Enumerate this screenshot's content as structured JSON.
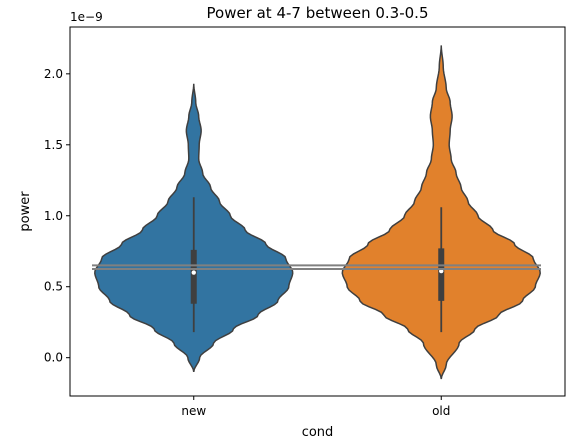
{
  "chart_data": {
    "type": "violin",
    "title": "Power at 4-7 between 0.3-0.5",
    "xlabel": "cond",
    "ylabel": "power",
    "y_offset_label": "1e−9",
    "y_scale": 1e-09,
    "ylim": [
      -0.27,
      2.33
    ],
    "yticks": [
      0.0,
      0.5,
      1.0,
      1.5,
      2.0
    ],
    "ytick_labels": [
      "0.0",
      "0.5",
      "1.0",
      "1.5",
      "2.0"
    ],
    "categories": [
      "new",
      "old"
    ],
    "grid": false,
    "violins": [
      {
        "category": "new",
        "color": "#3274a1",
        "profile": [
          [
            -0.1,
            0.0
          ],
          [
            0.0,
            0.06
          ],
          [
            0.1,
            0.2
          ],
          [
            0.2,
            0.4
          ],
          [
            0.3,
            0.65
          ],
          [
            0.4,
            0.85
          ],
          [
            0.5,
            0.96
          ],
          [
            0.6,
            1.0
          ],
          [
            0.7,
            0.93
          ],
          [
            0.8,
            0.73
          ],
          [
            0.9,
            0.52
          ],
          [
            1.0,
            0.37
          ],
          [
            1.1,
            0.26
          ],
          [
            1.2,
            0.17
          ],
          [
            1.3,
            0.09
          ],
          [
            1.4,
            0.05
          ],
          [
            1.5,
            0.055
          ],
          [
            1.6,
            0.075
          ],
          [
            1.7,
            0.05
          ],
          [
            1.8,
            0.02
          ],
          [
            1.93,
            0.0
          ]
        ],
        "whisker": [
          0.18,
          1.13
        ],
        "quartiles": [
          0.38,
          0.76
        ],
        "median": 0.6
      },
      {
        "category": "old",
        "color": "#e1812c",
        "profile": [
          [
            -0.15,
            0.0
          ],
          [
            -0.05,
            0.05
          ],
          [
            0.1,
            0.18
          ],
          [
            0.2,
            0.34
          ],
          [
            0.3,
            0.58
          ],
          [
            0.4,
            0.82
          ],
          [
            0.5,
            0.95
          ],
          [
            0.6,
            1.0
          ],
          [
            0.7,
            0.93
          ],
          [
            0.8,
            0.74
          ],
          [
            0.9,
            0.52
          ],
          [
            1.0,
            0.37
          ],
          [
            1.1,
            0.27
          ],
          [
            1.2,
            0.2
          ],
          [
            1.3,
            0.15
          ],
          [
            1.4,
            0.1
          ],
          [
            1.5,
            0.08
          ],
          [
            1.6,
            0.09
          ],
          [
            1.7,
            0.11
          ],
          [
            1.8,
            0.09
          ],
          [
            1.9,
            0.05
          ],
          [
            2.05,
            0.02
          ],
          [
            2.2,
            0.0
          ]
        ],
        "whisker": [
          0.18,
          1.06
        ],
        "quartiles": [
          0.4,
          0.77
        ],
        "median": 0.61
      }
    ],
    "reference_lines": [
      {
        "y": 0.65,
        "color": "#808080"
      },
      {
        "y": 0.625,
        "color": "#808080"
      }
    ]
  }
}
